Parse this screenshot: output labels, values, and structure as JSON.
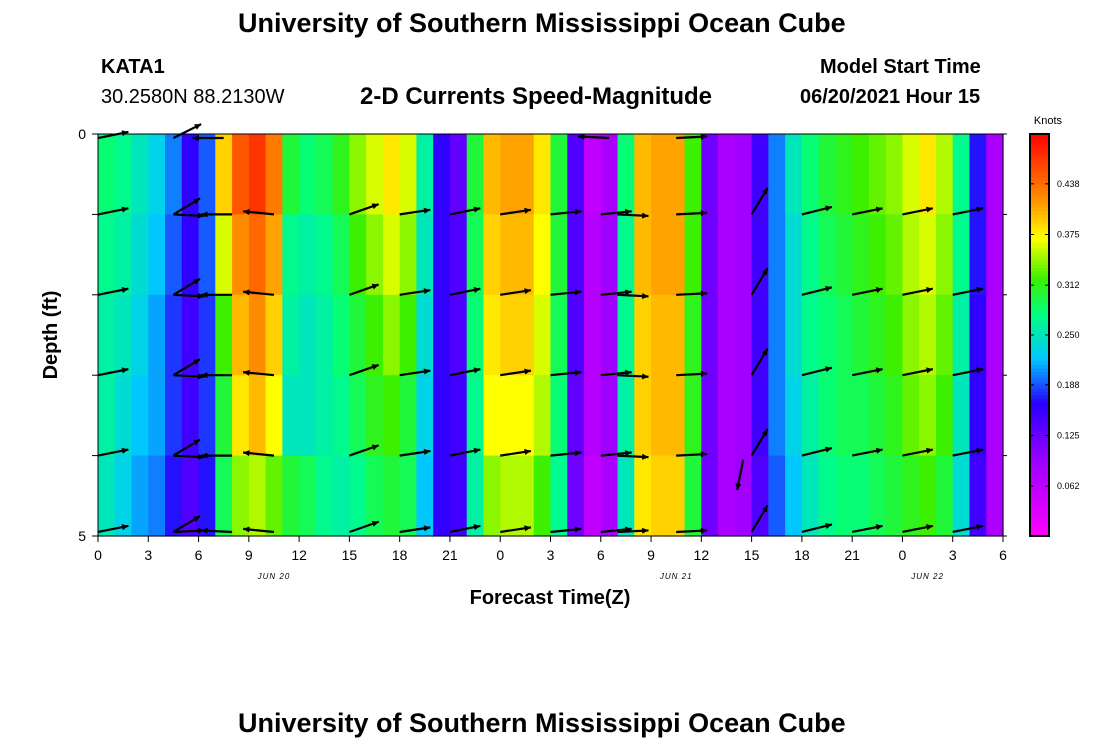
{
  "header": {
    "title": "University of Southern Mississippi Ocean Cube",
    "station": "KATA1",
    "coords": "30.2580N  88.2130W",
    "chart_title": "2-D Currents Speed-Magnitude",
    "model_start_label": "Model Start Time",
    "model_start_value": "06/20/2021 Hour 15"
  },
  "footer": {
    "title": "University of Southern Mississippi Ocean Cube"
  },
  "colorbar": {
    "unit": "Knots",
    "ticks": [
      "0.438",
      "0.375",
      "0.312",
      "0.250",
      "0.188",
      "0.125",
      "0.062"
    ],
    "range": [
      0.0,
      0.5
    ]
  },
  "chart_data": {
    "type": "heatmap",
    "title": "2-D Currents Speed-Magnitude",
    "xlabel": "Forecast Time(Z)",
    "ylabel": "Depth (ft)",
    "x_tick_labels": [
      "0",
      "3",
      "6",
      "9",
      "12",
      "15",
      "18",
      "21",
      "0",
      "3",
      "6",
      "9",
      "12",
      "15",
      "18",
      "21",
      "0",
      "3",
      "6"
    ],
    "date_labels": [
      "JUN 20",
      "JUN 21",
      "JUN 22"
    ],
    "date_label_hours": [
      10.5,
      34.5,
      49.5
    ],
    "y_tick_labels": [
      "0",
      "5"
    ],
    "ylim": [
      0,
      5
    ],
    "x_range_hours": [
      0,
      54
    ],
    "depth_rows": 5,
    "columns": [
      {
        "h": 0,
        "v": [
          0.28,
          0.27,
          0.26,
          0.26,
          0.25
        ]
      },
      {
        "h": 1,
        "v": [
          0.27,
          0.26,
          0.25,
          0.24,
          0.23
        ]
      },
      {
        "h": 2,
        "v": [
          0.25,
          0.24,
          0.23,
          0.22,
          0.21
        ]
      },
      {
        "h": 3,
        "v": [
          0.23,
          0.22,
          0.21,
          0.21,
          0.2
        ]
      },
      {
        "h": 4,
        "v": [
          0.2,
          0.19,
          0.18,
          0.18,
          0.17
        ]
      },
      {
        "h": 5,
        "v": [
          0.16,
          0.16,
          0.15,
          0.15,
          0.14
        ]
      },
      {
        "h": 6,
        "v": [
          0.19,
          0.19,
          0.18,
          0.18,
          0.17
        ]
      },
      {
        "h": 7,
        "v": [
          0.39,
          0.36,
          0.32,
          0.3,
          0.29
        ]
      },
      {
        "h": 8,
        "v": [
          0.45,
          0.42,
          0.4,
          0.38,
          0.34
        ]
      },
      {
        "h": 9,
        "v": [
          0.47,
          0.44,
          0.42,
          0.4,
          0.35
        ]
      },
      {
        "h": 10,
        "v": [
          0.43,
          0.41,
          0.39,
          0.37,
          0.33
        ]
      },
      {
        "h": 11,
        "v": [
          0.3,
          0.27,
          0.26,
          0.25,
          0.3
        ]
      },
      {
        "h": 12,
        "v": [
          0.28,
          0.26,
          0.25,
          0.25,
          0.29
        ]
      },
      {
        "h": 13,
        "v": [
          0.29,
          0.27,
          0.26,
          0.26,
          0.27
        ]
      },
      {
        "h": 14,
        "v": [
          0.31,
          0.29,
          0.28,
          0.27,
          0.26
        ]
      },
      {
        "h": 15,
        "v": [
          0.34,
          0.32,
          0.3,
          0.29,
          0.27
        ]
      },
      {
        "h": 16,
        "v": [
          0.36,
          0.34,
          0.32,
          0.31,
          0.29
        ]
      },
      {
        "h": 17,
        "v": [
          0.38,
          0.36,
          0.34,
          0.32,
          0.3
        ]
      },
      {
        "h": 18,
        "v": [
          0.36,
          0.34,
          0.32,
          0.3,
          0.29
        ]
      },
      {
        "h": 19,
        "v": [
          0.26,
          0.25,
          0.24,
          0.23,
          0.22
        ]
      },
      {
        "h": 20,
        "v": [
          0.16,
          0.16,
          0.16,
          0.16,
          0.16
        ]
      },
      {
        "h": 21,
        "v": [
          0.13,
          0.14,
          0.14,
          0.15,
          0.15
        ]
      },
      {
        "h": 22,
        "v": [
          0.3,
          0.29,
          0.28,
          0.27,
          0.26
        ]
      },
      {
        "h": 23,
        "v": [
          0.4,
          0.39,
          0.38,
          0.37,
          0.34
        ]
      },
      {
        "h": 24,
        "v": [
          0.41,
          0.4,
          0.39,
          0.37,
          0.35
        ]
      },
      {
        "h": 25,
        "v": [
          0.41,
          0.4,
          0.39,
          0.37,
          0.35
        ]
      },
      {
        "h": 26,
        "v": [
          0.38,
          0.37,
          0.36,
          0.35,
          0.32
        ]
      },
      {
        "h": 27,
        "v": [
          0.3,
          0.3,
          0.29,
          0.28,
          0.27
        ]
      },
      {
        "h": 28,
        "v": [
          0.14,
          0.14,
          0.14,
          0.13,
          0.12
        ]
      },
      {
        "h": 29,
        "v": [
          0.06,
          0.07,
          0.07,
          0.07,
          0.06
        ]
      },
      {
        "h": 30,
        "v": [
          0.08,
          0.09,
          0.09,
          0.09,
          0.08
        ]
      },
      {
        "h": 31,
        "v": [
          0.28,
          0.27,
          0.27,
          0.26,
          0.25
        ]
      },
      {
        "h": 32,
        "v": [
          0.4,
          0.4,
          0.39,
          0.39,
          0.38
        ]
      },
      {
        "h": 33,
        "v": [
          0.41,
          0.41,
          0.4,
          0.4,
          0.39
        ]
      },
      {
        "h": 34,
        "v": [
          0.41,
          0.41,
          0.4,
          0.4,
          0.39
        ]
      },
      {
        "h": 35,
        "v": [
          0.32,
          0.32,
          0.31,
          0.31,
          0.3
        ]
      },
      {
        "h": 36,
        "v": [
          0.12,
          0.12,
          0.12,
          0.12,
          0.12
        ]
      },
      {
        "h": 37,
        "v": [
          0.08,
          0.08,
          0.08,
          0.08,
          0.08
        ]
      },
      {
        "h": 38,
        "v": [
          0.09,
          0.09,
          0.09,
          0.09,
          0.09
        ]
      },
      {
        "h": 39,
        "v": [
          0.15,
          0.15,
          0.15,
          0.15,
          0.14
        ]
      },
      {
        "h": 40,
        "v": [
          0.2,
          0.2,
          0.2,
          0.2,
          0.19
        ]
      },
      {
        "h": 41,
        "v": [
          0.25,
          0.24,
          0.24,
          0.23,
          0.22
        ]
      },
      {
        "h": 42,
        "v": [
          0.28,
          0.27,
          0.27,
          0.26,
          0.25
        ]
      },
      {
        "h": 43,
        "v": [
          0.3,
          0.29,
          0.28,
          0.28,
          0.27
        ]
      },
      {
        "h": 44,
        "v": [
          0.31,
          0.3,
          0.29,
          0.29,
          0.28
        ]
      },
      {
        "h": 45,
        "v": [
          0.32,
          0.31,
          0.3,
          0.29,
          0.28
        ]
      },
      {
        "h": 46,
        "v": [
          0.33,
          0.32,
          0.31,
          0.3,
          0.29
        ]
      },
      {
        "h": 47,
        "v": [
          0.34,
          0.33,
          0.32,
          0.31,
          0.3
        ]
      },
      {
        "h": 48,
        "v": [
          0.36,
          0.35,
          0.34,
          0.33,
          0.31
        ]
      },
      {
        "h": 49,
        "v": [
          0.38,
          0.36,
          0.35,
          0.34,
          0.32
        ]
      },
      {
        "h": 50,
        "v": [
          0.35,
          0.34,
          0.33,
          0.32,
          0.3
        ]
      },
      {
        "h": 51,
        "v": [
          0.27,
          0.27,
          0.26,
          0.25,
          0.24
        ]
      },
      {
        "h": 52,
        "v": [
          0.17,
          0.17,
          0.16,
          0.16,
          0.15
        ]
      },
      {
        "h": 53,
        "v": [
          0.08,
          0.08,
          0.08,
          0.08,
          0.08
        ]
      }
    ],
    "arrow_depths": [
      0,
      1,
      2,
      3,
      4,
      5
    ],
    "arrows": [
      {
        "h": 0,
        "u": 1.0,
        "v": 0.2
      },
      {
        "h": 4.5,
        "u": 1.0,
        "v": -0.05
      },
      {
        "h": 4.5,
        "u": 1.0,
        "v": 0.6
      },
      {
        "h": 8,
        "u": -1.0,
        "v": 0.0
      },
      {
        "h": 10.5,
        "u": -1.0,
        "v": 0.1
      },
      {
        "h": 15,
        "u": 1.0,
        "v": 0.35
      },
      {
        "h": 18,
        "u": 1.0,
        "v": 0.15
      },
      {
        "h": 21,
        "u": 1.0,
        "v": 0.2
      },
      {
        "h": 24,
        "u": 1.0,
        "v": 0.15
      },
      {
        "h": 27,
        "u": 1.0,
        "v": 0.1
      },
      {
        "h": 30,
        "u": 1.0,
        "v": 0.1
      },
      {
        "h": 31,
        "u": 1.0,
        "v": -0.05
      },
      {
        "h": 34.5,
        "u": 1.0,
        "v": 0.05
      },
      {
        "h": 39,
        "u": 0.6,
        "v": 1.0
      },
      {
        "h": 42,
        "u": 1.0,
        "v": 0.25
      },
      {
        "h": 45,
        "u": 1.0,
        "v": 0.2
      },
      {
        "h": 48,
        "u": 1.0,
        "v": 0.2
      },
      {
        "h": 51,
        "u": 1.0,
        "v": 0.2
      }
    ],
    "arrow_surface": [
      {
        "h": 0,
        "u": 1.0,
        "v": 0.2
      },
      {
        "h": 4.5,
        "u": 1.0,
        "v": 0.5
      },
      {
        "h": 7.5,
        "u": -1.0,
        "v": 0.0
      },
      {
        "h": 30.5,
        "u": -1.0,
        "v": 0.05
      },
      {
        "h": 34.5,
        "u": 1.0,
        "v": 0.05
      }
    ],
    "arrow_bottom_special": {
      "h": 38.5,
      "u": -0.2,
      "v": -1.0
    }
  }
}
